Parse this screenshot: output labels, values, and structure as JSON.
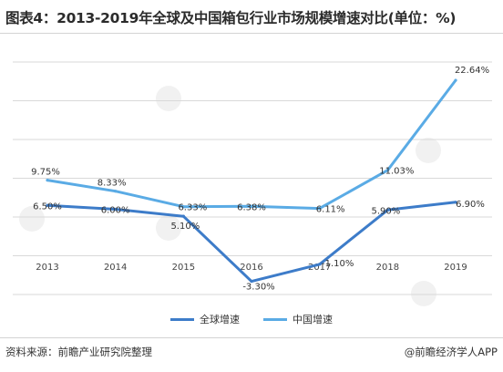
{
  "header": {
    "title": "图表4：2013-2019年全球及中国箱包行业市场规模增速对比(单位：%)"
  },
  "footer": {
    "source": "资料来源：前瞻产业研究院整理",
    "brand": "@前瞻经济学人APP"
  },
  "colors": {
    "global": "#3d7cc9",
    "china": "#5aabe5"
  },
  "chart_data": {
    "type": "line",
    "title": "图表4：2013-2019年全球及中国箱包行业市场规模增速对比(单位：%)",
    "xlabel": "",
    "ylabel": "",
    "x": [
      "2013",
      "2014",
      "2015",
      "2016",
      "2017",
      "2018",
      "2019"
    ],
    "ylim": [
      -5,
      25
    ],
    "grid": true,
    "legend": "bottom",
    "series": [
      {
        "name": "全球增速",
        "values": [
          6.5,
          6.0,
          5.1,
          -3.3,
          -1.1,
          5.9,
          6.9
        ],
        "labels": [
          "6.50%",
          "6.00%",
          "5.10%",
          "-3.30%",
          "-1.10%",
          "5.90%",
          "6.90%"
        ]
      },
      {
        "name": "中国增速",
        "values": [
          9.75,
          8.33,
          6.33,
          6.38,
          6.11,
          11.03,
          22.64
        ],
        "labels": [
          "9.75%",
          "8.33%",
          "6.33%",
          "6.38%",
          "6.11%",
          "11.03%",
          "22.64%"
        ]
      }
    ]
  }
}
